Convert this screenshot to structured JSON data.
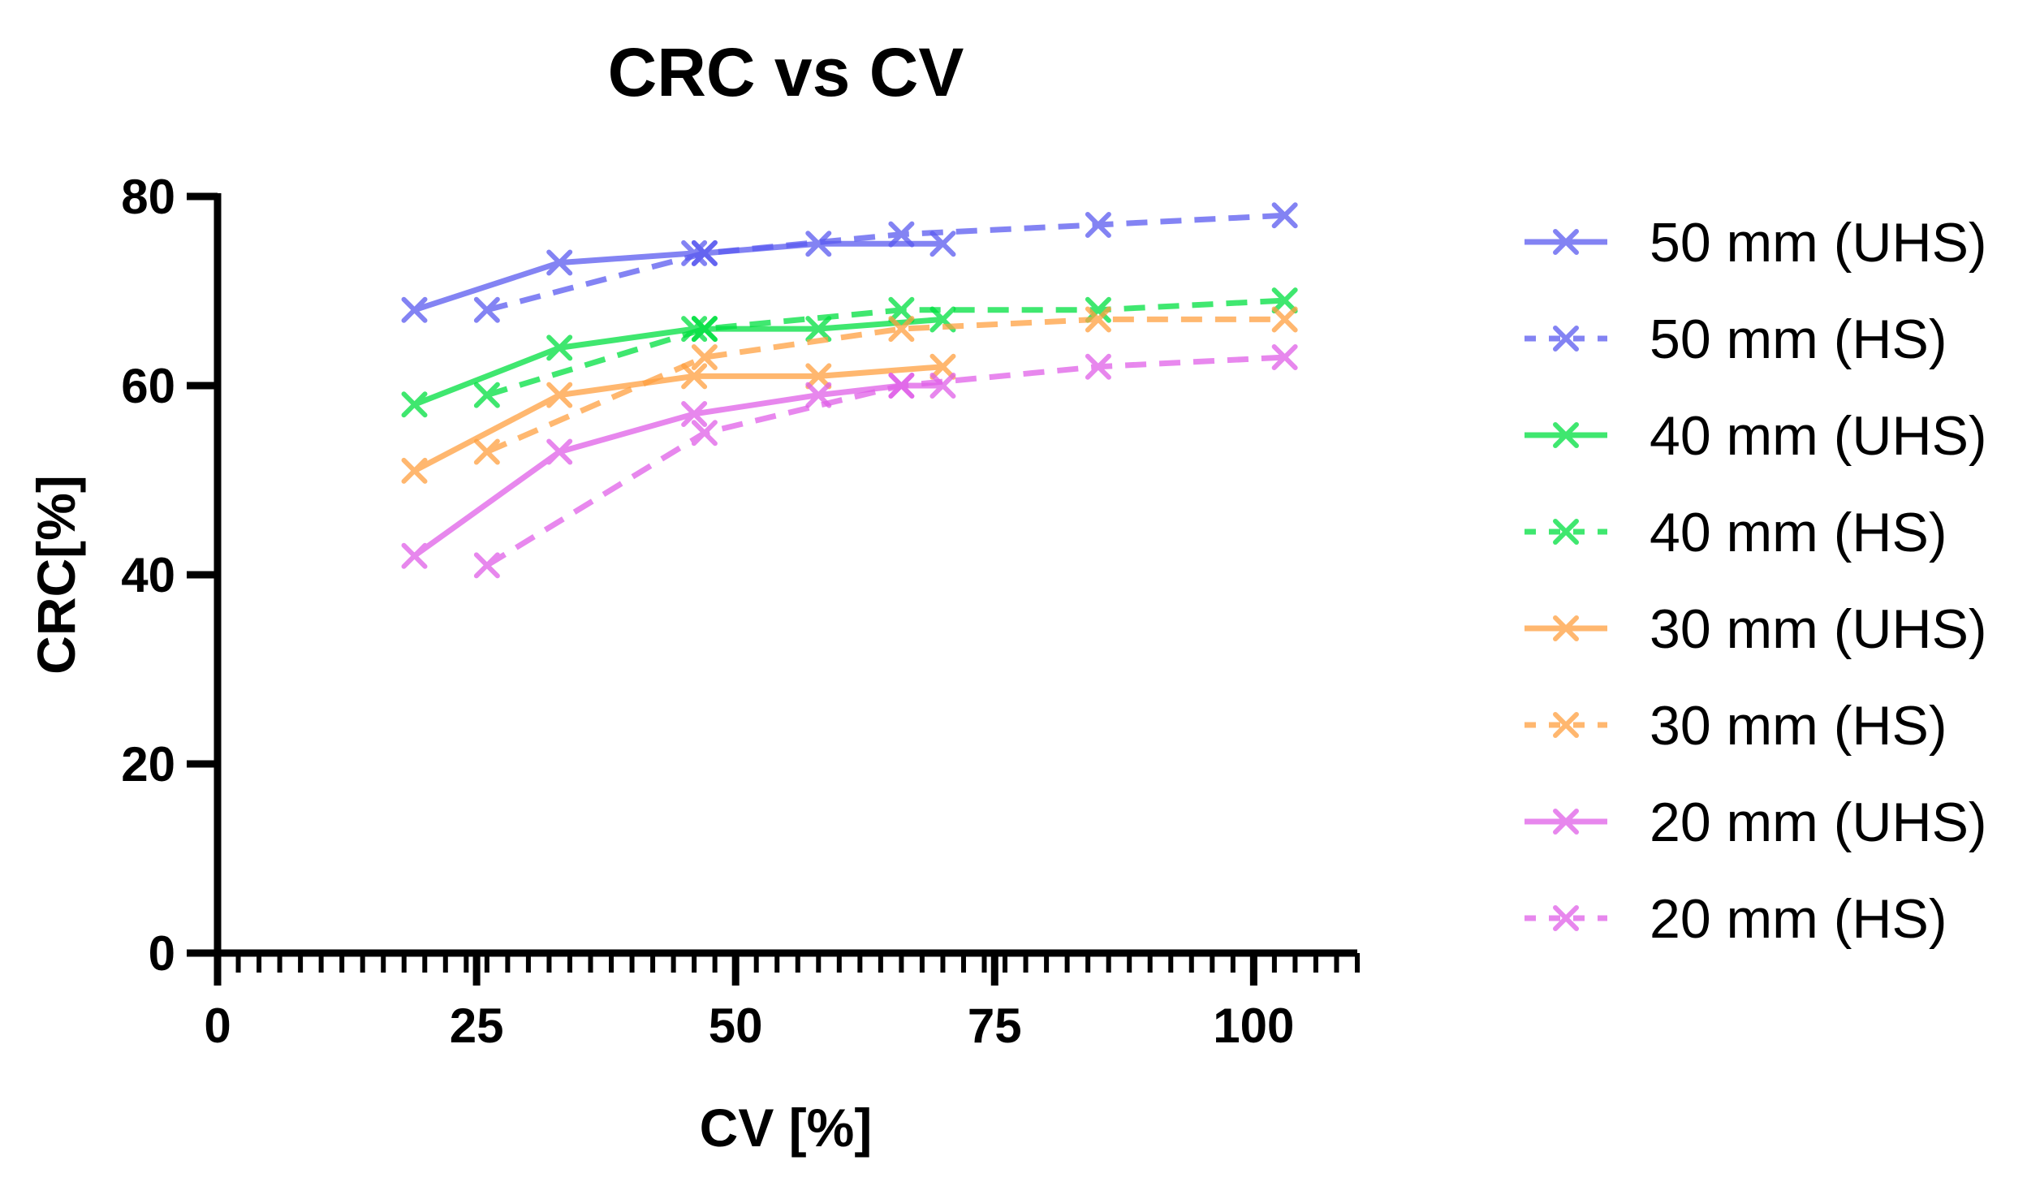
{
  "chart_data": {
    "type": "line",
    "title": "CRC vs CV",
    "xlabel": "CV [%]",
    "ylabel": "CRC[%]",
    "xlim": [
      0,
      110
    ],
    "ylim": [
      0,
      80
    ],
    "x_ticks": [
      0,
      25,
      50,
      75,
      100
    ],
    "y_ticks": [
      0,
      20,
      40,
      60,
      80
    ],
    "x_minor_step": 2,
    "grid": false,
    "legend_position": "right",
    "marker": "x",
    "series": [
      {
        "name": "50 mm (UHS)",
        "color": "#5a5af0",
        "dash": "solid",
        "x": [
          19,
          33,
          46,
          47,
          58,
          70
        ],
        "y": [
          68,
          73,
          74,
          74,
          75,
          75
        ]
      },
      {
        "name": "50 mm (HS)",
        "color": "#5a5af0",
        "dash": "dashed",
        "x": [
          26,
          47,
          66,
          85,
          103
        ],
        "y": [
          68,
          74,
          76,
          77,
          78
        ]
      },
      {
        "name": "40 mm (UHS)",
        "color": "#00e040",
        "dash": "solid",
        "x": [
          19,
          33,
          46,
          47,
          58,
          70
        ],
        "y": [
          58,
          64,
          66,
          66,
          66,
          67
        ]
      },
      {
        "name": "40 mm (HS)",
        "color": "#00e040",
        "dash": "dashed",
        "x": [
          26,
          47,
          66,
          85,
          103
        ],
        "y": [
          59,
          66,
          68,
          68,
          69
        ]
      },
      {
        "name": "30 mm (UHS)",
        "color": "#ffa040",
        "dash": "solid",
        "x": [
          19,
          33,
          46,
          58,
          70
        ],
        "y": [
          51,
          59,
          61,
          61,
          62
        ]
      },
      {
        "name": "30 mm (HS)",
        "color": "#ffa040",
        "dash": "dashed",
        "x": [
          26,
          47,
          66,
          85,
          103
        ],
        "y": [
          53,
          63,
          66,
          67,
          67
        ]
      },
      {
        "name": "20 mm (UHS)",
        "color": "#e060e8",
        "dash": "solid",
        "x": [
          19,
          33,
          46,
          58,
          66,
          70
        ],
        "y": [
          42,
          53,
          57,
          59,
          60,
          60
        ]
      },
      {
        "name": "20 mm (HS)",
        "color": "#e060e8",
        "dash": "dashed",
        "x": [
          26,
          47,
          66,
          85,
          103
        ],
        "y": [
          41,
          55,
          60,
          62,
          63
        ]
      }
    ]
  }
}
